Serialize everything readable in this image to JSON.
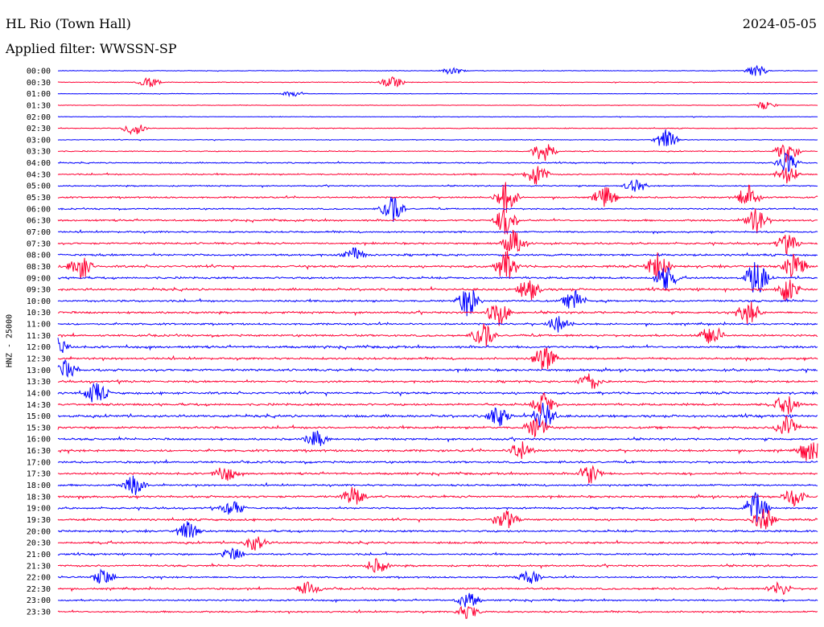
{
  "header": {
    "station": "HL Rio (Town Hall)",
    "date": "2024-05-05",
    "filter_label": "Applied filter:",
    "filter_value": "WWSSN-SP"
  },
  "chart_data": {
    "type": "line",
    "title": "HL Rio (Town Hall)",
    "ylabel": "HNZ - 25000",
    "xlabel": "",
    "trace_colors": [
      "#0000ff",
      "#ff0033"
    ],
    "rows": [
      "00:00",
      "00:30",
      "01:00",
      "01:30",
      "02:00",
      "02:30",
      "03:00",
      "03:30",
      "04:00",
      "04:30",
      "05:00",
      "05:30",
      "06:00",
      "06:30",
      "07:00",
      "07:30",
      "08:00",
      "08:30",
      "09:00",
      "09:30",
      "10:00",
      "10:30",
      "11:00",
      "11:30",
      "12:00",
      "12:30",
      "13:00",
      "13:30",
      "14:00",
      "14:30",
      "15:00",
      "15:30",
      "16:00",
      "16:30",
      "17:00",
      "17:30",
      "18:00",
      "18:30",
      "19:00",
      "19:30",
      "20:00",
      "20:30",
      "21:00",
      "21:30",
      "22:00",
      "22:30",
      "23:00",
      "23:30"
    ],
    "noise_level": [
      0.15,
      0.18,
      0.12,
      0.14,
      0.15,
      0.2,
      0.18,
      0.25,
      0.3,
      0.35,
      0.3,
      0.4,
      0.35,
      0.45,
      0.4,
      0.45,
      0.5,
      0.55,
      0.5,
      0.55,
      0.5,
      0.5,
      0.45,
      0.5,
      0.55,
      0.5,
      0.55,
      0.5,
      0.55,
      0.55,
      0.6,
      0.55,
      0.5,
      0.55,
      0.5,
      0.5,
      0.45,
      0.5,
      0.45,
      0.5,
      0.5,
      0.5,
      0.45,
      0.45,
      0.4,
      0.45,
      0.4,
      0.4
    ],
    "events": [
      {
        "row": 0,
        "t": 0.92,
        "amp": 0.6
      },
      {
        "row": 0,
        "t": 0.52,
        "amp": 0.4
      },
      {
        "row": 1,
        "t": 0.12,
        "amp": 0.5
      },
      {
        "row": 1,
        "t": 0.44,
        "amp": 0.6
      },
      {
        "row": 2,
        "t": 0.31,
        "amp": 0.3
      },
      {
        "row": 3,
        "t": 0.93,
        "amp": 0.4
      },
      {
        "row": 5,
        "t": 0.1,
        "amp": 0.7
      },
      {
        "row": 6,
        "t": 0.8,
        "amp": 1.0
      },
      {
        "row": 7,
        "t": 0.64,
        "amp": 1.2
      },
      {
        "row": 7,
        "t": 0.96,
        "amp": 1.2
      },
      {
        "row": 8,
        "t": 0.96,
        "amp": 1.0
      },
      {
        "row": 9,
        "t": 0.63,
        "amp": 1.1
      },
      {
        "row": 9,
        "t": 0.96,
        "amp": 0.9
      },
      {
        "row": 10,
        "t": 0.76,
        "amp": 0.6
      },
      {
        "row": 11,
        "t": 0.59,
        "amp": 1.5
      },
      {
        "row": 11,
        "t": 0.72,
        "amp": 1.1
      },
      {
        "row": 11,
        "t": 0.91,
        "amp": 1.2
      },
      {
        "row": 12,
        "t": 0.44,
        "amp": 1.3
      },
      {
        "row": 13,
        "t": 0.59,
        "amp": 1.4
      },
      {
        "row": 13,
        "t": 0.92,
        "amp": 1.2
      },
      {
        "row": 15,
        "t": 0.6,
        "amp": 1.2
      },
      {
        "row": 15,
        "t": 0.96,
        "amp": 0.9
      },
      {
        "row": 16,
        "t": 0.39,
        "amp": 0.7
      },
      {
        "row": 17,
        "t": 0.03,
        "amp": 1.3
      },
      {
        "row": 17,
        "t": 0.59,
        "amp": 1.5
      },
      {
        "row": 17,
        "t": 0.79,
        "amp": 1.4
      },
      {
        "row": 17,
        "t": 0.97,
        "amp": 1.3
      },
      {
        "row": 18,
        "t": 0.8,
        "amp": 1.2
      },
      {
        "row": 18,
        "t": 0.92,
        "amp": 1.8
      },
      {
        "row": 19,
        "t": 0.62,
        "amp": 1.1
      },
      {
        "row": 19,
        "t": 0.96,
        "amp": 1.3
      },
      {
        "row": 20,
        "t": 0.54,
        "amp": 1.5
      },
      {
        "row": 20,
        "t": 0.68,
        "amp": 1.0
      },
      {
        "row": 21,
        "t": 0.58,
        "amp": 1.3
      },
      {
        "row": 21,
        "t": 0.91,
        "amp": 1.2
      },
      {
        "row": 22,
        "t": 0.66,
        "amp": 0.9
      },
      {
        "row": 23,
        "t": 0.56,
        "amp": 1.2
      },
      {
        "row": 23,
        "t": 0.86,
        "amp": 1.1
      },
      {
        "row": 24,
        "t": 0.0,
        "amp": 0.8
      },
      {
        "row": 25,
        "t": 0.64,
        "amp": 1.3
      },
      {
        "row": 26,
        "t": 0.01,
        "amp": 1.0
      },
      {
        "row": 27,
        "t": 0.7,
        "amp": 0.9
      },
      {
        "row": 28,
        "t": 0.05,
        "amp": 1.1
      },
      {
        "row": 29,
        "t": 0.64,
        "amp": 1.1
      },
      {
        "row": 29,
        "t": 0.96,
        "amp": 1.0
      },
      {
        "row": 30,
        "t": 0.64,
        "amp": 1.4
      },
      {
        "row": 30,
        "t": 0.58,
        "amp": 1.0
      },
      {
        "row": 31,
        "t": 0.63,
        "amp": 1.0
      },
      {
        "row": 31,
        "t": 0.96,
        "amp": 1.2
      },
      {
        "row": 32,
        "t": 0.34,
        "amp": 0.8
      },
      {
        "row": 33,
        "t": 0.61,
        "amp": 0.9
      },
      {
        "row": 33,
        "t": 0.99,
        "amp": 1.2
      },
      {
        "row": 35,
        "t": 0.22,
        "amp": 0.8
      },
      {
        "row": 35,
        "t": 0.7,
        "amp": 1.0
      },
      {
        "row": 36,
        "t": 0.1,
        "amp": 1.0
      },
      {
        "row": 37,
        "t": 0.39,
        "amp": 1.0
      },
      {
        "row": 37,
        "t": 0.97,
        "amp": 0.9
      },
      {
        "row": 38,
        "t": 0.23,
        "amp": 0.8
      },
      {
        "row": 38,
        "t": 0.92,
        "amp": 1.6
      },
      {
        "row": 39,
        "t": 0.59,
        "amp": 1.0
      },
      {
        "row": 39,
        "t": 0.93,
        "amp": 1.1
      },
      {
        "row": 40,
        "t": 0.17,
        "amp": 0.9
      },
      {
        "row": 41,
        "t": 0.26,
        "amp": 0.8
      },
      {
        "row": 42,
        "t": 0.23,
        "amp": 0.7
      },
      {
        "row": 43,
        "t": 0.42,
        "amp": 0.7
      },
      {
        "row": 44,
        "t": 0.06,
        "amp": 0.8
      },
      {
        "row": 44,
        "t": 0.62,
        "amp": 0.7
      },
      {
        "row": 45,
        "t": 0.33,
        "amp": 0.7
      },
      {
        "row": 45,
        "t": 0.95,
        "amp": 0.7
      },
      {
        "row": 46,
        "t": 0.54,
        "amp": 0.8
      },
      {
        "row": 47,
        "t": 0.54,
        "amp": 0.7
      }
    ]
  }
}
